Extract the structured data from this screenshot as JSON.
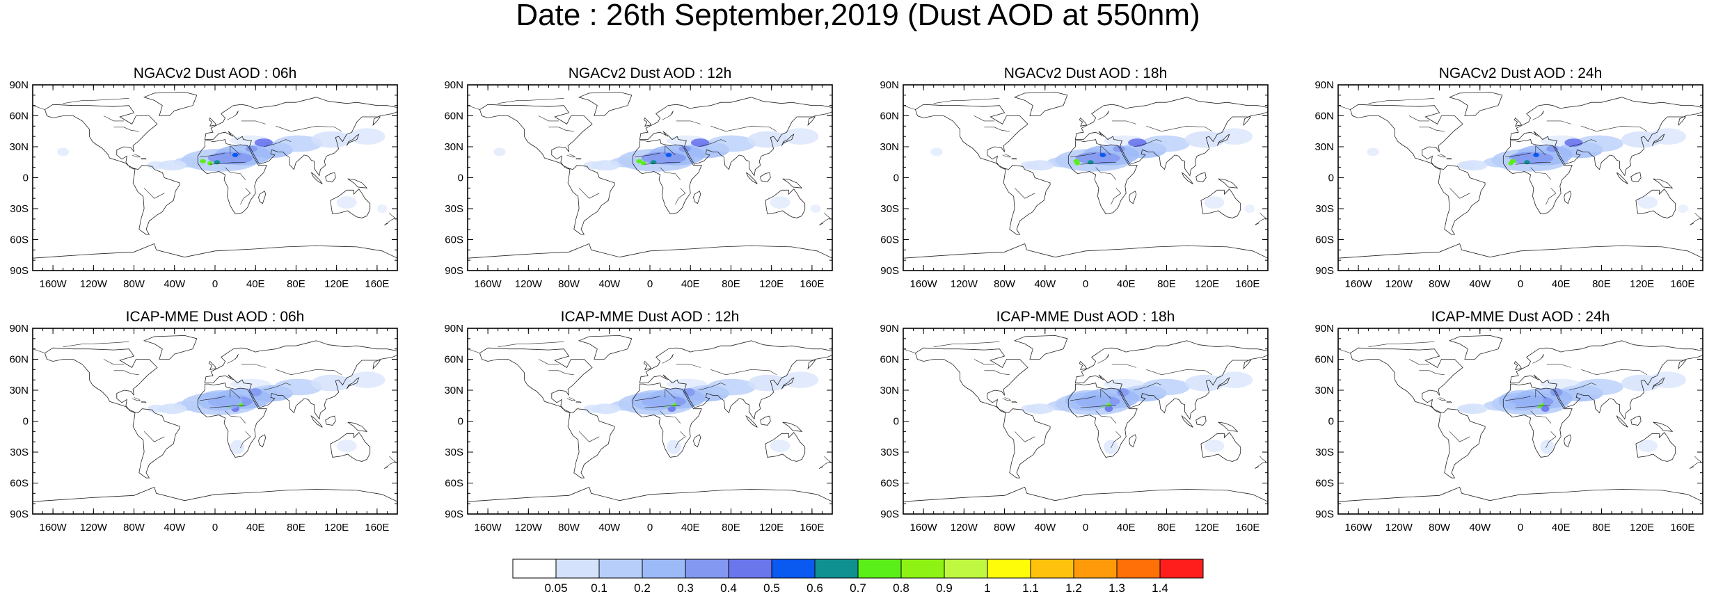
{
  "figure": {
    "title": "Date : 26th September,2019 (Dust AOD at 550nm)"
  },
  "panels": [
    {
      "title": "NGACv2 Dust AOD : 06h"
    },
    {
      "title": "NGACv2 Dust AOD : 12h"
    },
    {
      "title": "NGACv2 Dust AOD : 18h"
    },
    {
      "title": "NGACv2 Dust AOD : 24h"
    },
    {
      "title": "ICAP-MME Dust AOD : 06h"
    },
    {
      "title": "ICAP-MME Dust AOD : 12h"
    },
    {
      "title": "ICAP-MME Dust AOD : 18h"
    },
    {
      "title": "ICAP-MME Dust AOD : 24h"
    }
  ],
  "axes": {
    "lat_labels": [
      "90N",
      "60N",
      "30N",
      "0",
      "30S",
      "60S",
      "90S"
    ],
    "lon_labels": [
      "160W",
      "120W",
      "80W",
      "40W",
      "0",
      "40E",
      "80E",
      "120E",
      "160E"
    ],
    "lat_values": [
      90,
      60,
      30,
      0,
      -30,
      -60,
      -90
    ],
    "lon_values": [
      -160,
      -120,
      -80,
      -40,
      0,
      40,
      80,
      120,
      160
    ]
  },
  "colorbar": {
    "labels": [
      "0.05",
      "0.1",
      "0.2",
      "0.3",
      "0.4",
      "0.5",
      "0.6",
      "0.7",
      "0.8",
      "0.9",
      "1",
      "1.1",
      "1.2",
      "1.3",
      "1.4"
    ],
    "colors": [
      "#ffffff",
      "#d5e2fc",
      "#b8cefa",
      "#9cbaf8",
      "#8399f1",
      "#6a76ec",
      "#0a59f0",
      "#0f9192",
      "#5bef1a",
      "#8ef314",
      "#c0f741",
      "#fffc0a",
      "#ffc20c",
      "#ff9b0b",
      "#ff7009",
      "#ff1e1b"
    ]
  }
}
